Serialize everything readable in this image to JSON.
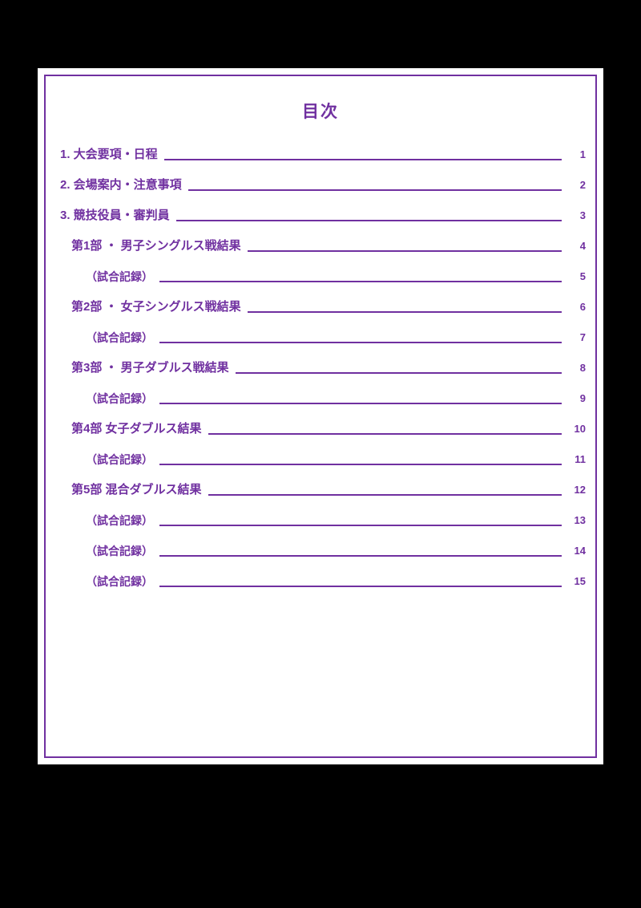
{
  "page": {
    "title": "目次"
  },
  "colors": {
    "accent": "#7030A0",
    "sheet_bg": "#ffffff",
    "canvas_bg": "#000000"
  },
  "toc": {
    "entries": [
      {
        "label": "1. 大会要項・日程",
        "page": "1",
        "level": 0
      },
      {
        "label": "2. 会場案内・注意事項",
        "page": "2",
        "level": 0
      },
      {
        "label": "3. 競技役員・審判員",
        "page": "3",
        "level": 0
      },
      {
        "label": "第1部 ・ 男子シングルス戦結果",
        "page": "4",
        "level": 1
      },
      {
        "label": "（試合記録）",
        "page": "5",
        "level": 2
      },
      {
        "label": "第2部 ・ 女子シングルス戦結果",
        "page": "6",
        "level": 1
      },
      {
        "label": "（試合記録）",
        "page": "7",
        "level": 2
      },
      {
        "label": "第3部 ・ 男子ダブルス戦結果",
        "page": "8",
        "level": 1
      },
      {
        "label": "（試合記録）",
        "page": "9",
        "level": 2
      },
      {
        "label": "第4部 女子ダブルス結果",
        "page": "10",
        "level": 1
      },
      {
        "label": "（試合記録）",
        "page": "11",
        "level": 2
      },
      {
        "label": "第5部 混合ダブルス結果",
        "page": "12",
        "level": 1
      },
      {
        "label": "（試合記録）",
        "page": "13",
        "level": 2
      },
      {
        "label": "（試合記録）",
        "page": "14",
        "level": 2
      },
      {
        "label": "（試合記録）",
        "page": "15",
        "level": 2
      }
    ]
  }
}
